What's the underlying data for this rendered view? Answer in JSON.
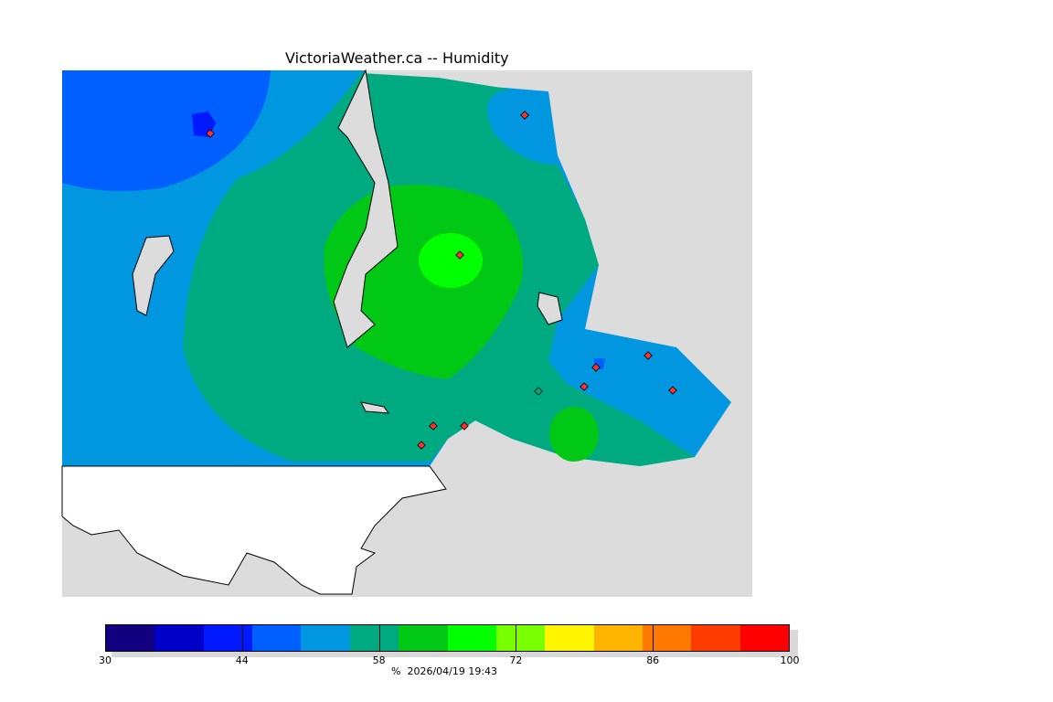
{
  "title": "VictoriaWeather.ca -- Humidity",
  "colorbar": {
    "unit": "%",
    "timestamp": "2026/04/19 19:43",
    "min": 30,
    "max": 100,
    "step": 5,
    "tick_labels": [
      "30",
      "44",
      "58",
      "72",
      "86",
      "100"
    ],
    "colors": [
      "#120080",
      "#0000c8",
      "#0019ff",
      "#005fff",
      "#0096e0",
      "#00aa80",
      "#00c814",
      "#00ff00",
      "#78ff00",
      "#fff500",
      "#ffb400",
      "#ff7800",
      "#ff3c00",
      "#ff0000"
    ]
  },
  "map": {
    "land_no_data": "#dcdcdc",
    "water": "#ffffff",
    "station_color": "#ff3030"
  }
}
